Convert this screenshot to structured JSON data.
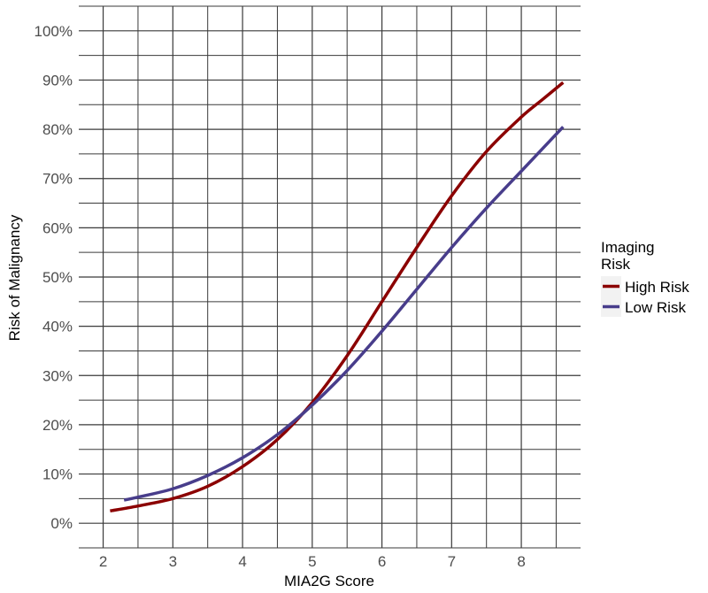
{
  "chart_data": {
    "type": "line",
    "title": "",
    "xlabel": "MIA2G Score",
    "ylabel": "Risk of Malignancy",
    "xlim": [
      1.65,
      8.85
    ],
    "ylim": [
      -0.05,
      1.05
    ],
    "x_ticks": [
      2,
      3,
      4,
      5,
      6,
      7,
      8
    ],
    "x_tick_labels": [
      "2",
      "3",
      "4",
      "5",
      "6",
      "7",
      "8"
    ],
    "y_ticks": [
      0,
      0.1,
      0.2,
      0.3,
      0.4,
      0.5,
      0.6,
      0.7,
      0.8,
      0.9,
      1.0
    ],
    "y_tick_labels": [
      "0%",
      "10%",
      "20%",
      "30%",
      "40%",
      "50%",
      "60%",
      "70%",
      "80%",
      "90%",
      "100%"
    ],
    "grid": true,
    "legend": {
      "title_lines": [
        "Imaging",
        "Risk"
      ],
      "position": "right"
    },
    "series": [
      {
        "name": "High Risk",
        "color": "#8b0000",
        "points": [
          [
            2.1,
            0.025
          ],
          [
            2.5,
            0.035
          ],
          [
            3.0,
            0.05
          ],
          [
            3.5,
            0.075
          ],
          [
            4.0,
            0.115
          ],
          [
            4.5,
            0.17
          ],
          [
            5.0,
            0.245
          ],
          [
            5.5,
            0.34
          ],
          [
            6.0,
            0.45
          ],
          [
            6.5,
            0.56
          ],
          [
            7.0,
            0.665
          ],
          [
            7.5,
            0.755
          ],
          [
            8.0,
            0.825
          ],
          [
            8.3,
            0.86
          ],
          [
            8.6,
            0.895
          ]
        ]
      },
      {
        "name": "Low Risk",
        "color": "#483d8b",
        "points": [
          [
            2.3,
            0.047
          ],
          [
            2.5,
            0.053
          ],
          [
            3.0,
            0.07
          ],
          [
            3.5,
            0.097
          ],
          [
            4.0,
            0.133
          ],
          [
            4.5,
            0.18
          ],
          [
            5.0,
            0.24
          ],
          [
            5.5,
            0.31
          ],
          [
            6.0,
            0.39
          ],
          [
            6.5,
            0.475
          ],
          [
            7.0,
            0.56
          ],
          [
            7.5,
            0.64
          ],
          [
            8.0,
            0.715
          ],
          [
            8.3,
            0.76
          ],
          [
            8.6,
            0.805
          ]
        ]
      }
    ]
  }
}
